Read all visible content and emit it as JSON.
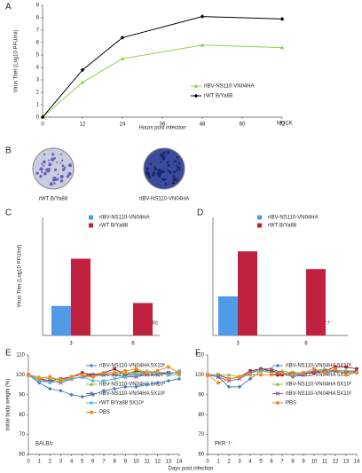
{
  "chart_data": [
    {
      "panel": "A",
      "type": "line",
      "ylabel": "Virus Titer (Log10 PFU/ml)",
      "xlabel": "Hours post infection",
      "annotation": "MDCK",
      "x": [
        0,
        12,
        24,
        48,
        72
      ],
      "xlim": [
        0,
        72
      ],
      "xticks": [
        0,
        12,
        24,
        36,
        48,
        60,
        72
      ],
      "ylim": [
        0,
        9
      ],
      "yticks": [
        0,
        1,
        2,
        3,
        4,
        5,
        6,
        7,
        8,
        9
      ],
      "series": [
        {
          "name": "rIBV-NS110-VN04HA",
          "color": "#92d050",
          "marker": "triangle",
          "values": [
            0,
            2.8,
            4.7,
            5.8,
            5.6
          ]
        },
        {
          "name": "rWT B/Ya88",
          "color": "#000000",
          "marker": "diamond",
          "values": [
            0,
            3.8,
            6.4,
            8.1,
            7.9
          ]
        }
      ]
    },
    {
      "panel": "B",
      "type": "image",
      "labels": [
        "rWT B/Ya88",
        "rIBV-NS110-VN04HA"
      ]
    },
    {
      "panel": "C",
      "type": "bar",
      "ylabel": "Virus Titer (Log10 PFU/ml)",
      "annotation": "BALB/c",
      "categories": [
        "3",
        "6"
      ],
      "ylim": [
        0,
        8
      ],
      "series": [
        {
          "name": "rIBV-NS110-VN04HA",
          "color": "#4f9be8",
          "values": [
            2.0,
            null
          ]
        },
        {
          "name": "rWT B/Ya88",
          "color": "#c0213f",
          "values": [
            5.2,
            2.2
          ]
        }
      ]
    },
    {
      "panel": "D",
      "type": "bar",
      "annotation": "PKR⁻/⁻",
      "categories": [
        "3",
        "6"
      ],
      "ylim": [
        0,
        8
      ],
      "series": [
        {
          "name": "rIBV-NS110-VN04HA",
          "color": "#4f9be8",
          "values": [
            2.65,
            null
          ]
        },
        {
          "name": "rWT B/Ya88",
          "color": "#c0213f",
          "values": [
            5.7,
            4.5
          ]
        }
      ]
    },
    {
      "panel": "E",
      "type": "line",
      "ylabel": "Initial body weight (%)",
      "xlabel": "Days post infection",
      "annotation": "BALB/c",
      "x": [
        0,
        1,
        2,
        3,
        4,
        5,
        6,
        7,
        8,
        9,
        10,
        11,
        12,
        13,
        14
      ],
      "xlim": [
        0,
        14
      ],
      "xticks": [
        0,
        1,
        2,
        3,
        4,
        5,
        6,
        7,
        8,
        9,
        10,
        11,
        12,
        13,
        14
      ],
      "ylim": [
        60,
        110
      ],
      "yticks": [
        60,
        70,
        80,
        90,
        100,
        110
      ],
      "series": [
        {
          "name": "rIBV-NS110-VN04HA 5X10⁵",
          "color": "#4f81bd",
          "marker": "diamond",
          "values": [
            100,
            96,
            93,
            92,
            90,
            89,
            90,
            92,
            93,
            94,
            94,
            95,
            96,
            97,
            98
          ]
        },
        {
          "name": "rIBV-NS110-VN04HA 5X10⁴",
          "color": "#a0262b",
          "marker": "square",
          "values": [
            100,
            98,
            97,
            98,
            99,
            101,
            100,
            101,
            103,
            100,
            102,
            101,
            101,
            101,
            101
          ]
        },
        {
          "name": "rIBV-NS110-VN04HA 5X10³",
          "color": "#8fbf3f",
          "marker": "triangle",
          "values": [
            100,
            99,
            98,
            98,
            98,
            99,
            99,
            100,
            100,
            101,
            101,
            102,
            101,
            100,
            100
          ]
        },
        {
          "name": "rIBV-NS110-VN04HA 5X10²",
          "color": "#7f5fa8",
          "marker": "x",
          "values": [
            100,
            97,
            97,
            96,
            98,
            99,
            100,
            100,
            100,
            99,
            99,
            100,
            100,
            101,
            101
          ]
        },
        {
          "name": "rWT B/Ya88 5X10⁵",
          "color": "#4bb8c8",
          "marker": "star",
          "values": [
            100,
            97,
            96,
            97,
            98,
            99,
            97,
            97,
            98,
            99,
            100,
            101,
            101,
            100,
            102
          ]
        },
        {
          "name": "PBS",
          "color": "#f08a24",
          "marker": "circle",
          "values": [
            100,
            98,
            99,
            97,
            99,
            100,
            99,
            101,
            101,
            102,
            103,
            101,
            102,
            104,
            101
          ]
        }
      ]
    },
    {
      "panel": "F",
      "type": "line",
      "annotation": "PKR⁻/⁻",
      "x": [
        0,
        1,
        2,
        3,
        4,
        5,
        6,
        7,
        8,
        9,
        10,
        11,
        12,
        13,
        14
      ],
      "xlim": [
        0,
        14
      ],
      "xticks": [
        0,
        1,
        2,
        3,
        4,
        5,
        6,
        7,
        8,
        9,
        10,
        11,
        12,
        13,
        14
      ],
      "ylim": [
        60,
        110
      ],
      "yticks": [
        60,
        70,
        80,
        90,
        100,
        110
      ],
      "series": [
        {
          "name": "rIBV-NS110-VN04HA 5X10⁵",
          "color": "#4f81bd",
          "marker": "diamond",
          "values": [
            100,
            99,
            94,
            94,
            98,
            102,
            102,
            101,
            99,
            100,
            102,
            101,
            102,
            102,
            101
          ]
        },
        {
          "name": "rIBV-NS110-VN04HA 5X10⁴",
          "color": "#a0262b",
          "marker": "square",
          "values": [
            100,
            100,
            98,
            99,
            102,
            103,
            102,
            100,
            101,
            101,
            101,
            102,
            104,
            104,
            103
          ]
        },
        {
          "name": "rIBV-NS110-VN04HA 5X10³",
          "color": "#8fbf3f",
          "marker": "triangle",
          "values": [
            100,
            100,
            100,
            99,
            101,
            102,
            101,
            102,
            101,
            101,
            102,
            103,
            102,
            102,
            102
          ]
        },
        {
          "name": "rIBV-NS110-VN04HA 5X10²",
          "color": "#7f5fa8",
          "marker": "x",
          "values": [
            100,
            99,
            97,
            98,
            101,
            103,
            103,
            101,
            100,
            100,
            102,
            102,
            102,
            101,
            102
          ]
        },
        {
          "name": "PBS",
          "color": "#f08a24",
          "marker": "circle",
          "values": [
            100,
            96,
            98,
            99,
            100,
            100,
            100,
            101,
            100,
            101,
            103,
            101,
            103,
            100,
            101
          ]
        }
      ]
    }
  ]
}
